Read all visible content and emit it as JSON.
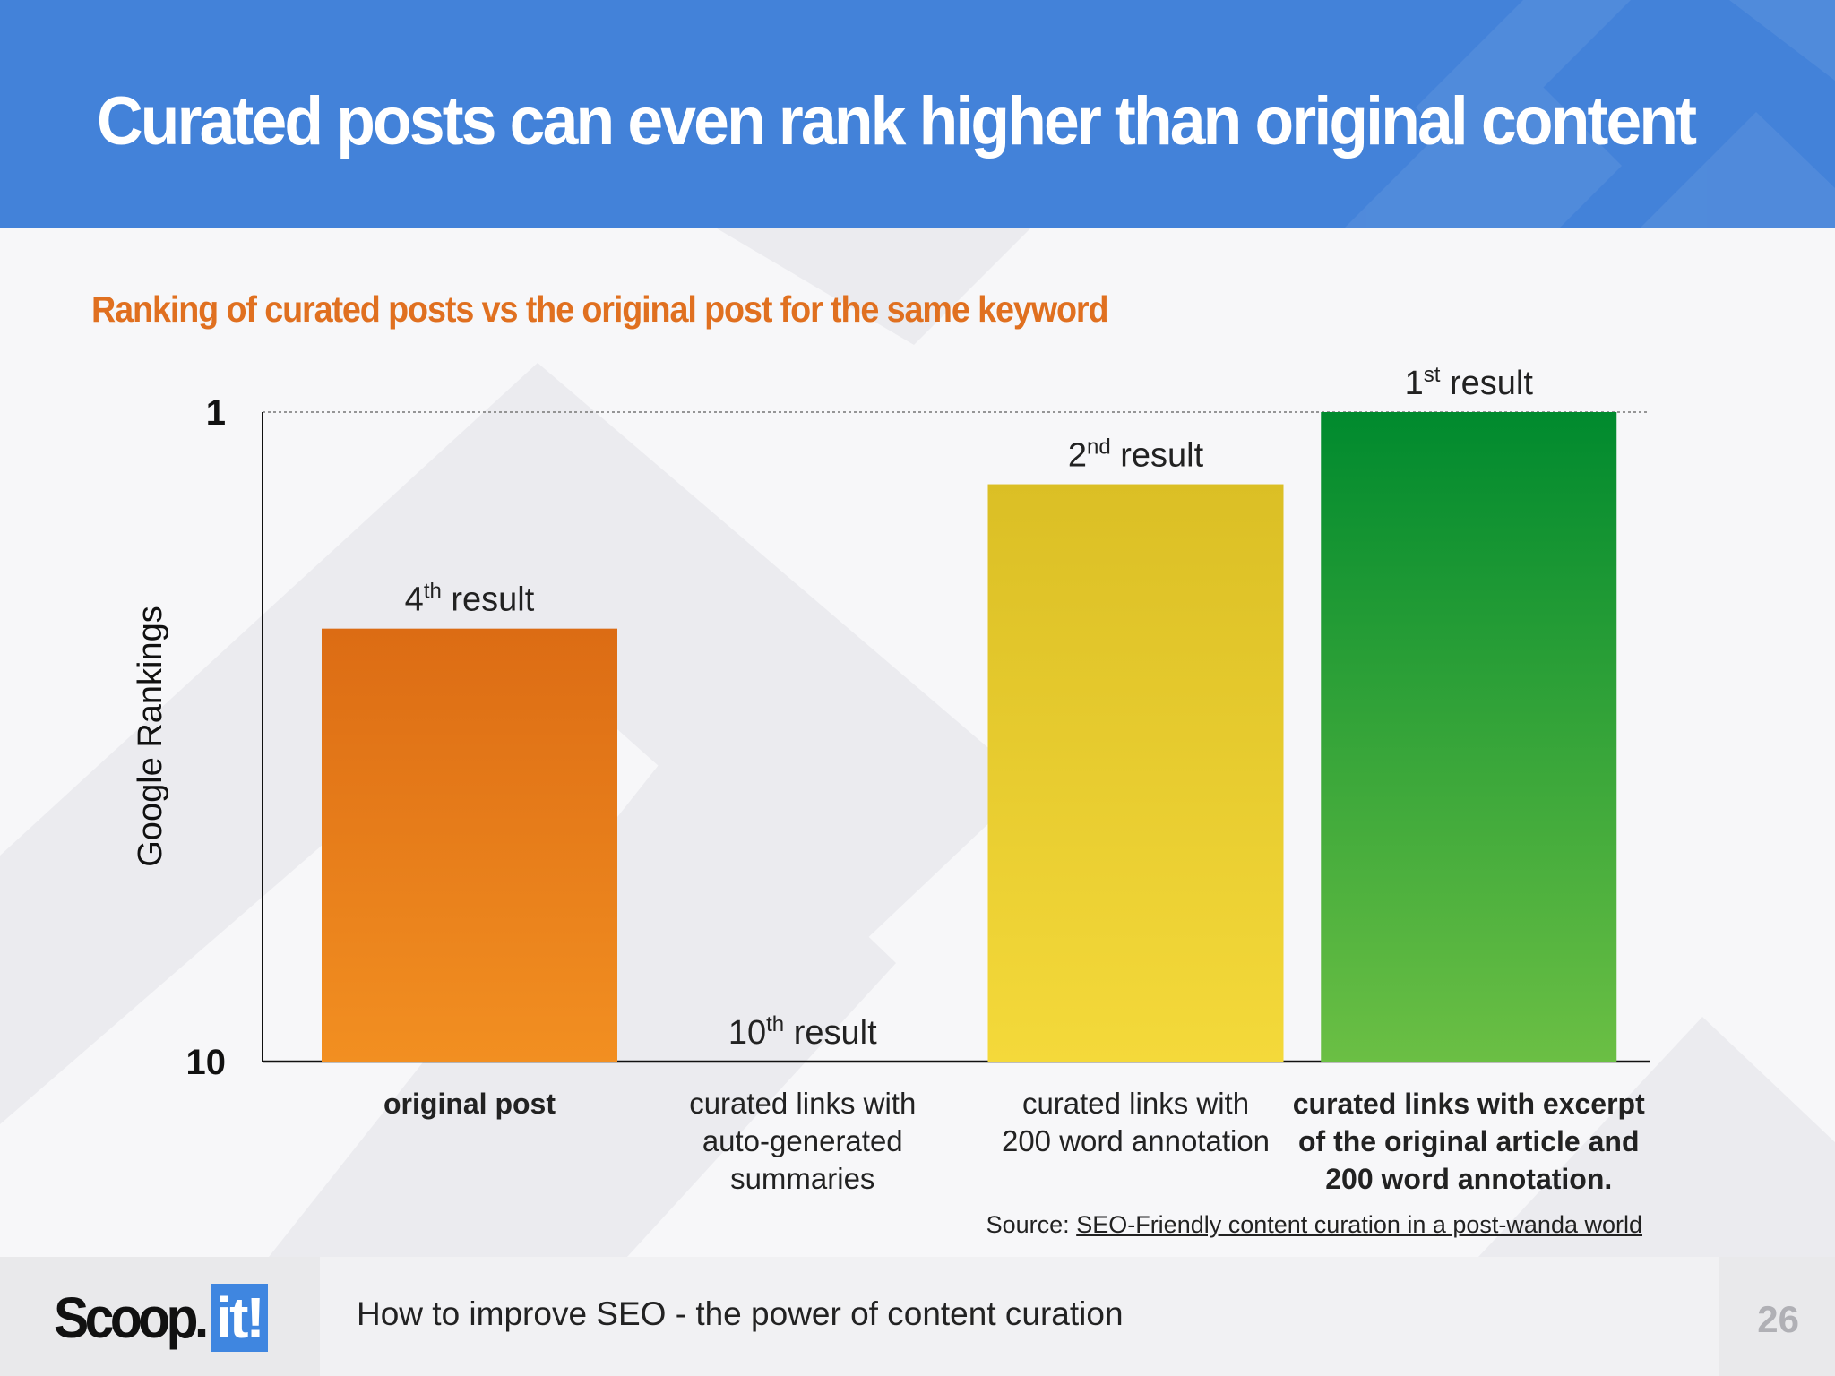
{
  "slide": {
    "title": "Curated posts can even rank higher than original content",
    "subtitle": "Ranking of curated posts vs the original post for the same keyword",
    "colors": {
      "header": "#4382d9",
      "subtitle": "#e07020"
    }
  },
  "chart_data": {
    "type": "bar",
    "ylabel": "Google Rankings",
    "yticks": [
      "1",
      "10"
    ],
    "ylim": [
      10,
      1
    ],
    "reversed_axis": true,
    "categories": [
      "original post",
      "curated links with auto-generated summaries",
      "curated links with 200 word annotation",
      "curated links with excerpt of the original article and 200 word annotation."
    ],
    "category_lines": [
      [
        "original post"
      ],
      [
        "curated links with",
        "auto-generated",
        "summaries"
      ],
      [
        "curated links with",
        "200 word annotation"
      ],
      [
        "curated links with excerpt",
        "of the original article and",
        "200 word annotation."
      ]
    ],
    "category_bold": [
      true,
      false,
      false,
      true
    ],
    "values": [
      4,
      10,
      2,
      1
    ],
    "data_labels": [
      {
        "num": "4",
        "sup": "th",
        "rest": " result"
      },
      {
        "num": "10",
        "sup": "th",
        "rest": " result"
      },
      {
        "num": "2",
        "sup": "nd",
        "rest": " result"
      },
      {
        "num": "1",
        "sup": "st",
        "rest": " result"
      }
    ],
    "bar_colors": [
      [
        "#dc6c14",
        "#f28f21"
      ],
      [
        "#c8230e",
        "#e65a4c"
      ],
      [
        "#dbbf25",
        "#f4d93a"
      ],
      [
        "#008a2e",
        "#6bbf44"
      ]
    ],
    "grid": false,
    "legend": "none"
  },
  "source": {
    "prefix": "Source: ",
    "link_text": "SEO-Friendly content curation in a post-wanda world"
  },
  "footer": {
    "logo_main": "Scoop.",
    "logo_badge": "it!",
    "text": "How to improve SEO - the power of content curation",
    "page_number": "26"
  }
}
